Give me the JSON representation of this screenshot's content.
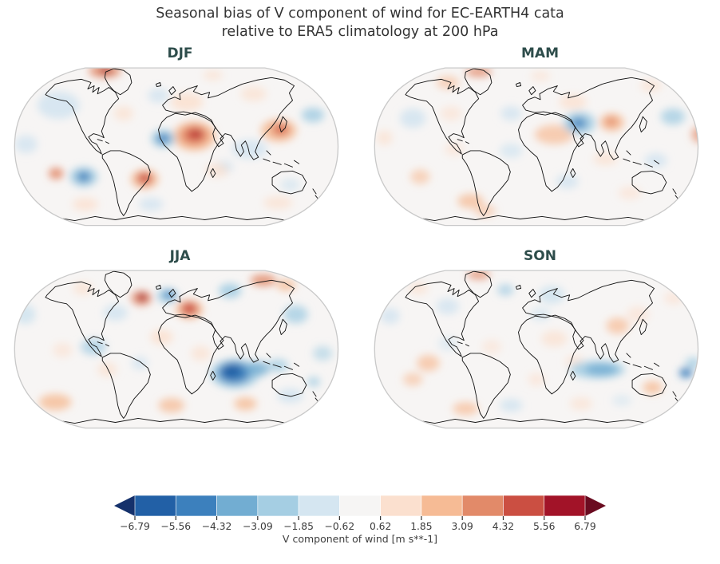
{
  "figure": {
    "title_line1": "Seasonal bias of V component of wind for EC-EARTH4 cata",
    "title_line2": "relative to ERA5 climatology at 200 hPa"
  },
  "colors": {
    "title": "#333333",
    "panel_label": "#2e4d4b",
    "map_background": "#f7f5f4",
    "map_outline": "#c9c9c9",
    "coastline": "#131313",
    "tick_text": "#3a3a3a"
  },
  "colorbar": {
    "label": "V component of wind [m s**-1]",
    "ticks": [
      "−6.79",
      "−5.56",
      "−4.32",
      "−3.09",
      "−1.85",
      "−0.62",
      "0.62",
      "1.85",
      "3.09",
      "4.32",
      "5.56",
      "6.79"
    ],
    "segment_colors": [
      "#2260a6",
      "#3c80bd",
      "#72add2",
      "#a5cee3",
      "#d5e6f1",
      "#f6f5f4",
      "#fbe0cf",
      "#f6bb95",
      "#e28a69",
      "#cb4f42",
      "#a21328"
    ],
    "arrow_left_color": "#15316b",
    "arrow_right_color": "#6a0b20"
  },
  "panels": [
    {
      "label": "DJF",
      "blobs": [
        [
          60,
          52,
          26,
          17,
          "#d2e4f0",
          0.85
        ],
        [
          20,
          100,
          14,
          11,
          "#d2e4f0",
          0.8
        ],
        [
          183,
          40,
          13,
          9,
          "#d2e4f0",
          0.8
        ],
        [
          295,
          106,
          22,
          12,
          "#d2e4f0",
          0.8
        ],
        [
          264,
          128,
          11,
          8,
          "#d2e4f0",
          0.8
        ],
        [
          174,
          174,
          15,
          8,
          "#d2e4f0",
          0.8
        ],
        [
          373,
          64,
          14,
          9,
          "#a5cee3",
          0.85
        ],
        [
          345,
          150,
          12,
          8,
          "#d2e4f0",
          0.7
        ],
        [
          218,
          48,
          20,
          11,
          "#fbe0cf",
          0.85
        ],
        [
          300,
          38,
          16,
          9,
          "#fbe0cf",
          0.7
        ],
        [
          140,
          62,
          12,
          9,
          "#fbe0cf",
          0.7
        ],
        [
          93,
          174,
          16,
          8,
          "#fbe0cf",
          0.8
        ],
        [
          330,
          172,
          18,
          8,
          "#fbe0cf",
          0.7
        ],
        [
          255,
          132,
          14,
          9,
          "#fbe0cf",
          0.7
        ],
        [
          250,
          15,
          12,
          6,
          "#fbe0cf",
          0.7
        ],
        [
          117,
          10,
          20,
          8,
          "#e28a69",
          0.85
        ],
        [
          118,
          9,
          7,
          4,
          "#a21328",
          0.9
        ],
        [
          227,
          90,
          26,
          18,
          "#f6bb95",
          0.9
        ],
        [
          227,
          89,
          17,
          12,
          "#e28a69",
          0.95
        ],
        [
          228,
          88,
          10,
          7,
          "#cb4f42",
          1
        ],
        [
          230,
          87,
          4,
          3,
          "#a21328",
          1
        ],
        [
          189,
          93,
          15,
          11,
          "#a5cee3",
          0.9
        ],
        [
          189,
          93,
          8,
          6,
          "#3c80bd",
          0.9
        ],
        [
          331,
          83,
          22,
          14,
          "#f6bb95",
          0.85
        ],
        [
          333,
          82,
          11,
          8,
          "#e28a69",
          0.95
        ],
        [
          334,
          81,
          5,
          4,
          "#cb4f42",
          0.9
        ],
        [
          91,
          140,
          17,
          12,
          "#a5cee3",
          0.95
        ],
        [
          91,
          140,
          8,
          6,
          "#3c80bd",
          0.95
        ],
        [
          57,
          136,
          9,
          7,
          "#e28a69",
          0.9
        ],
        [
          166,
          143,
          17,
          12,
          "#f6bb95",
          0.85
        ],
        [
          166,
          142,
          9,
          7,
          "#cb4f42",
          0.9
        ]
      ]
    },
    {
      "label": "MAM",
      "blobs": [
        [
          134,
          11,
          16,
          6,
          "#e28a69",
          0.8
        ],
        [
          96,
          24,
          14,
          8,
          "#f6bb95",
          0.6
        ],
        [
          53,
          68,
          16,
          12,
          "#d2e4f0",
          0.85
        ],
        [
          174,
          62,
          13,
          9,
          "#d2e4f0",
          0.8
        ],
        [
          100,
          62,
          13,
          9,
          "#fbe0cf",
          0.6
        ],
        [
          227,
          88,
          24,
          12,
          "#f6bb95",
          0.7
        ],
        [
          250,
          48,
          17,
          9,
          "#fbe0cf",
          0.8
        ],
        [
          258,
          74,
          20,
          14,
          "#a5cee3",
          0.85
        ],
        [
          257,
          74,
          10,
          7,
          "#3c80bd",
          0.8
        ],
        [
          298,
          73,
          15,
          11,
          "#f6bb95",
          0.85
        ],
        [
          297,
          72,
          7,
          5,
          "#e28a69",
          0.9
        ],
        [
          373,
          66,
          15,
          10,
          "#a5cee3",
          0.8
        ],
        [
          346,
          28,
          13,
          7,
          "#fbe0cf",
          0.7
        ],
        [
          406,
          88,
          10,
          10,
          "#e28a69",
          0.7
        ],
        [
          18,
          92,
          10,
          9,
          "#fbe0cf",
          0.7
        ],
        [
          174,
          108,
          14,
          9,
          "#d2e4f0",
          0.75
        ],
        [
          104,
          106,
          12,
          8,
          "#fbe0cf",
          0.6
        ],
        [
          62,
          140,
          12,
          9,
          "#f6bb95",
          0.6
        ],
        [
          124,
          170,
          16,
          9,
          "#f6bb95",
          0.75
        ],
        [
          142,
          182,
          13,
          7,
          "#f6bb95",
          0.6
        ],
        [
          243,
          146,
          14,
          9,
          "#d2e4f0",
          0.8
        ],
        [
          290,
          118,
          15,
          8,
          "#fbe0cf",
          0.7
        ],
        [
          352,
          120,
          14,
          9,
          "#d2e4f0",
          0.8
        ],
        [
          320,
          160,
          14,
          8,
          "#fbe0cf",
          0.6
        ],
        [
          210,
          16,
          12,
          6,
          "#fbe0cf",
          0.6
        ]
      ]
    },
    {
      "label": "JJA",
      "blobs": [
        [
          19,
          60,
          13,
          12,
          "#d2e4f0",
          0.9
        ],
        [
          130,
          58,
          15,
          10,
          "#d2e4f0",
          0.85
        ],
        [
          103,
          100,
          16,
          10,
          "#a5cee3",
          0.75
        ],
        [
          160,
          120,
          10,
          8,
          "#d2e4f0",
          0.8
        ],
        [
          345,
          160,
          16,
          9,
          "#d2e4f0",
          0.85
        ],
        [
          385,
          108,
          12,
          9,
          "#a5cee3",
          0.6
        ],
        [
          90,
          28,
          12,
          8,
          "#fbe0cf",
          0.7
        ],
        [
          187,
          88,
          14,
          9,
          "#fbe0cf",
          0.85
        ],
        [
          235,
          108,
          12,
          9,
          "#fbe0cf",
          0.7
        ],
        [
          65,
          104,
          12,
          9,
          "#fbe0cf",
          0.6
        ],
        [
          120,
          128,
          12,
          9,
          "#fbe0cf",
          0.7
        ],
        [
          56,
          168,
          20,
          10,
          "#f6bb95",
          0.8
        ],
        [
          199,
          172,
          16,
          9,
          "#f6bb95",
          0.75
        ],
        [
          290,
          170,
          14,
          8,
          "#f6bb95",
          0.8
        ],
        [
          162,
          40,
          13,
          9,
          "#e28a69",
          0.8
        ],
        [
          163,
          39,
          6,
          5,
          "#a21328",
          0.9
        ],
        [
          221,
          54,
          17,
          12,
          "#f6bb95",
          0.85
        ],
        [
          221,
          53,
          10,
          8,
          "#cb4f42",
          0.9
        ],
        [
          194,
          37,
          13,
          9,
          "#a5cee3",
          0.9
        ],
        [
          196,
          36,
          7,
          5,
          "#3c80bd",
          0.85
        ],
        [
          271,
          31,
          14,
          9,
          "#a5cee3",
          0.9
        ],
        [
          312,
          18,
          16,
          7,
          "#e28a69",
          0.85
        ],
        [
          340,
          24,
          12,
          7,
          "#f6bb95",
          0.8
        ],
        [
          352,
          60,
          15,
          11,
          "#a5cee3",
          0.8
        ],
        [
          277,
          133,
          30,
          18,
          "#a5cee3",
          0.95
        ],
        [
          276,
          132,
          20,
          13,
          "#3c80bd",
          0.95
        ],
        [
          273,
          130,
          11,
          8,
          "#2260a6",
          1
        ],
        [
          305,
          127,
          15,
          9,
          "#72add2",
          0.8
        ],
        [
          330,
          123,
          13,
          8,
          "#a5cee3",
          0.8
        ],
        [
          374,
          143,
          8,
          6,
          "#a5cee3",
          0.8
        ]
      ]
    },
    {
      "label": "SON",
      "blobs": [
        [
          224,
          36,
          16,
          11,
          "#d2e4f0",
          0.9
        ],
        [
          210,
          60,
          12,
          8,
          "#d2e4f0",
          0.75
        ],
        [
          96,
          50,
          14,
          10,
          "#d2e4f0",
          0.8
        ],
        [
          25,
          62,
          12,
          10,
          "#d2e4f0",
          0.8
        ],
        [
          174,
          172,
          14,
          8,
          "#d2e4f0",
          0.85
        ],
        [
          167,
          30,
          10,
          7,
          "#a5cee3",
          0.75
        ],
        [
          134,
          11,
          14,
          6,
          "#e28a69",
          0.75
        ],
        [
          60,
          28,
          12,
          7,
          "#fbe0cf",
          0.7
        ],
        [
          227,
          90,
          16,
          10,
          "#fbe0cf",
          0.7
        ],
        [
          252,
          118,
          12,
          8,
          "#fbe0cf",
          0.6
        ],
        [
          330,
          60,
          14,
          10,
          "#fbe0cf",
          0.6
        ],
        [
          374,
          40,
          12,
          8,
          "#fbe0cf",
          0.6
        ],
        [
          150,
          100,
          12,
          9,
          "#fbe0cf",
          0.55
        ],
        [
          205,
          140,
          10,
          8,
          "#fbe0cf",
          0.6
        ],
        [
          260,
          170,
          14,
          8,
          "#fbe0cf",
          0.65
        ],
        [
          72,
          120,
          14,
          10,
          "#f6bb95",
          0.7
        ],
        [
          53,
          140,
          12,
          8,
          "#f6bb95",
          0.6
        ],
        [
          118,
          176,
          16,
          8,
          "#f6bb95",
          0.7
        ],
        [
          305,
          74,
          14,
          10,
          "#f6bb95",
          0.7
        ],
        [
          348,
          150,
          12,
          8,
          "#f6bb95",
          0.8
        ],
        [
          280,
          128,
          34,
          11,
          "#a5cee3",
          0.9
        ],
        [
          285,
          128,
          20,
          7,
          "#72add2",
          0.85
        ],
        [
          389,
          132,
          8,
          6,
          "#3c80bd",
          0.95
        ],
        [
          398,
          120,
          10,
          7,
          "#a5cee3",
          0.8
        ],
        [
          96,
          96,
          12,
          9,
          "#d2e4f0",
          0.6
        ],
        [
          310,
          166,
          12,
          7,
          "#d2e4f0",
          0.6
        ]
      ]
    }
  ],
  "chart_data": {
    "type": "heatmap",
    "subtype": "filled_contour_world_maps",
    "projection": "Robinson",
    "title": "Seasonal bias of V component of wind for EC-EARTH4 cata relative to ERA5 climatology at 200 hPa",
    "variable": "V component of wind",
    "units": "m s**-1",
    "pressure_level": "200 hPa",
    "model": "EC-EARTH4 cata",
    "reference": "ERA5 climatology",
    "panels": [
      "DJF",
      "MAM",
      "JJA",
      "SON"
    ],
    "contour_levels": [
      -6.79,
      -5.56,
      -4.32,
      -3.09,
      -1.85,
      -0.62,
      0.62,
      1.85,
      3.09,
      4.32,
      5.56,
      6.79
    ],
    "colormap": "RdBu_r discrete, colorbar extended with arrows on both ends",
    "value_range_displayed": [
      -6.79,
      6.79
    ],
    "notable_features": {
      "DJF": "Strong positive bias (+5 to +7) over the central Sahara with small dark-red core; positive bias over Japan/NW Pacific; negative bias cells over the SE tropical Pacific and off West Africa; positive cell in subtropical South Atlantic; red patch over Arctic near Greenland.",
      "MAM": "Generally weak biases; moderate negative bias over the Arabian Sea, moderate positive bias over Pakistan/northern India and the Sahara; faint mottled pattern elsewhere.",
      "JJA": "Strong negative bias (−5 to −7) over the SW Indian Ocean east of Madagascar extending toward Indonesia; positive bias over central Europe and Arctic Siberia; small strong positive spot near Labrador; negative bias over Scandinavia and central Asia.",
      "SON": "Moderate negative bias band across the southern Indianian Ocean toward the Coral Sea with a stronger cell near New Guinea; weak positive bias over Australia, India and the SE Pacific; weak negative bias over northern Europe."
    }
  }
}
